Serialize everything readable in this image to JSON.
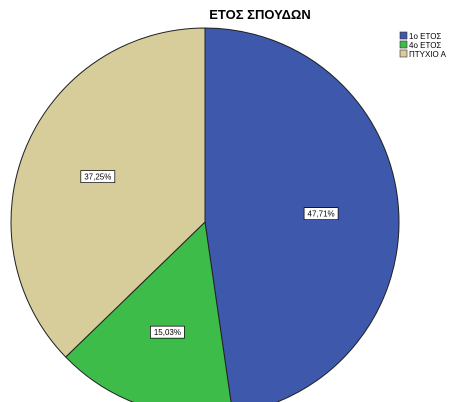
{
  "chart_data": {
    "type": "pie",
    "title": "ΕΤΟΣ ΣΠΟΥΔΩΝ",
    "categories": [
      "1ο ΕΤΟΣ",
      "4ο ΕΤΟΣ",
      "ΠΤΥΧΙΟ Α"
    ],
    "values": [
      47.71,
      15.03,
      37.25
    ],
    "value_labels": [
      "47,71%",
      "15,03%",
      "37,25%"
    ],
    "colors": [
      "#3e58ac",
      "#3ebc4a",
      "#d6cd9a"
    ],
    "start_angle_deg": 0,
    "direction": "clockwise",
    "legend_position": "top-right"
  }
}
